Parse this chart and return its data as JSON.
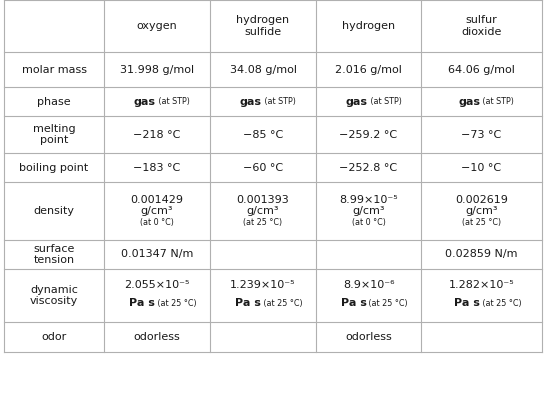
{
  "col_headers": [
    "oxygen",
    "hydrogen\nsulfide",
    "hydrogen",
    "sulfur\ndioxide"
  ],
  "row_labels": [
    "molar mass",
    "phase",
    "melting\npoint",
    "boiling point",
    "density",
    "surface\ntension",
    "dynamic\nviscosity",
    "odor"
  ],
  "molar_mass": [
    "31.998 g/mol",
    "34.08 g/mol",
    "2.016 g/mol",
    "64.06 g/mol"
  ],
  "phase_bold": "gas",
  "phase_small": " (at STP)",
  "melting": [
    "−218 °C",
    "−85 °C",
    "−259.2 °C",
    "−73 °C"
  ],
  "boiling": [
    "−183 °C",
    "−60 °C",
    "−252.8 °C",
    "−10 °C"
  ],
  "density_line1": [
    "0.001429",
    "0.001393",
    "8.99×10⁻⁵",
    "0.002619"
  ],
  "density_line2": [
    "g/cm³",
    "g/cm³",
    "g/cm³",
    "g/cm³"
  ],
  "density_line3": [
    "(at 0 °C)",
    "(at 25 °C)",
    "(at 0 °C)",
    "(at 25 °C)"
  ],
  "surface": [
    "0.01347 N/m",
    "",
    "",
    "0.02859 N/m"
  ],
  "viscosity_line1": [
    "2.055×10⁻⁵",
    "1.239×10⁻⁵",
    "8.9×10⁻⁶",
    "1.282×10⁻⁵"
  ],
  "viscosity_bold": "Pa s",
  "viscosity_small": " (at 25 °C)",
  "odor": [
    "odorless",
    "",
    "odorless",
    ""
  ],
  "bg_color": "#ffffff",
  "text_color": "#1a1a1a",
  "grid_color": "#b0b0b0",
  "fs_main": 8.0,
  "fs_small": 5.8,
  "fs_header": 8.0,
  "fs_label": 8.0
}
